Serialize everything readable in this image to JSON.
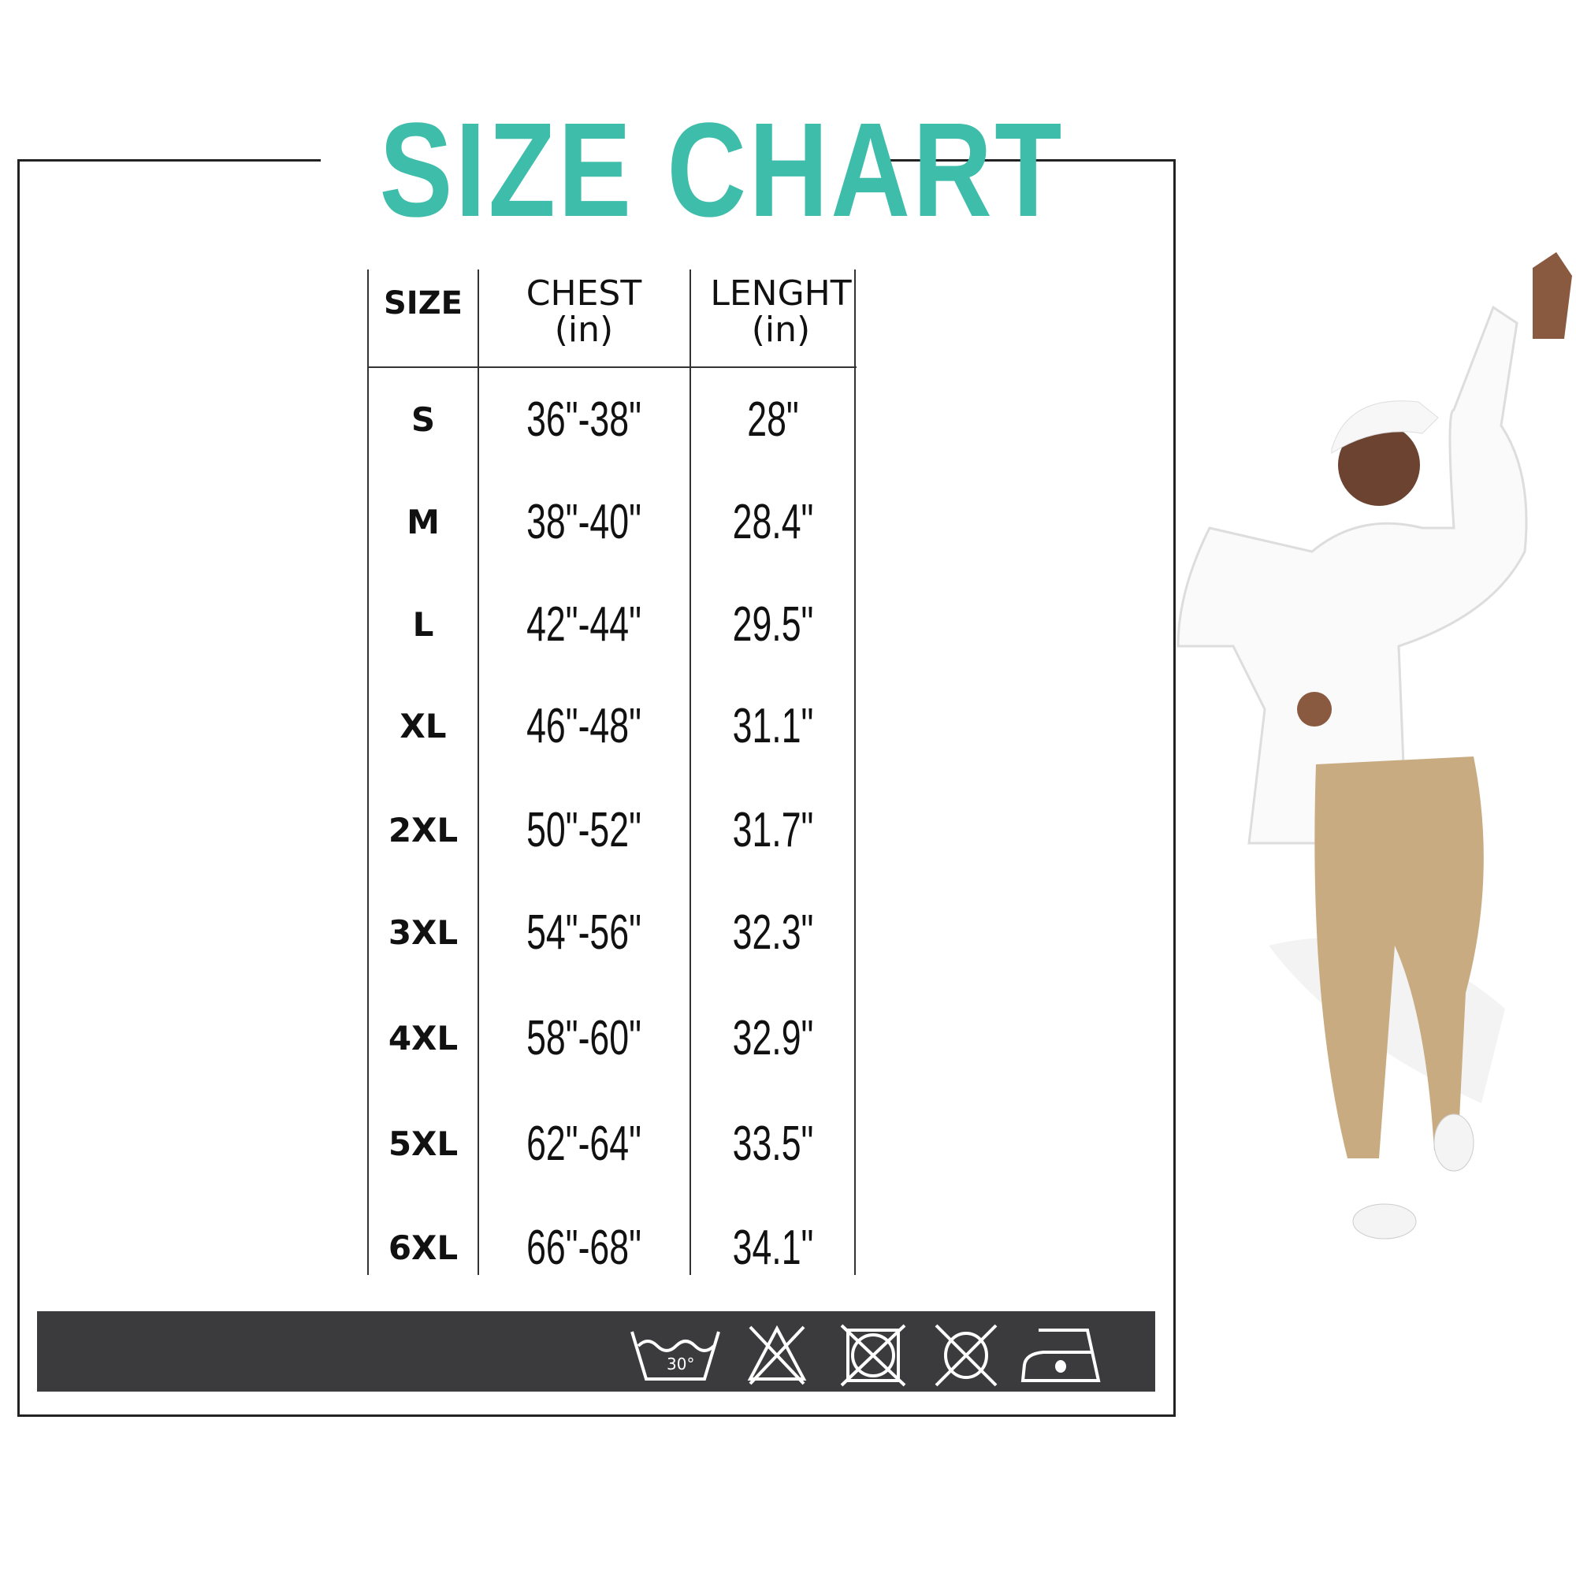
{
  "title": "SIZE CHART",
  "colors": {
    "title": "#3dbdaa",
    "care_bar": "#3b3b3d"
  },
  "table": {
    "headers": [
      {
        "line1": "SIZE",
        "line2": ""
      },
      {
        "line1": "CHEST",
        "line2": "(in)"
      },
      {
        "line1": "LENGHT",
        "line2": "(in)"
      }
    ],
    "rows": [
      {
        "size": "S",
        "chest": "36\"-38\"",
        "length": "28\""
      },
      {
        "size": "M",
        "chest": "38\"-40\"",
        "length": "28.4\""
      },
      {
        "size": "L",
        "chest": "42\"-44\"",
        "length": "29.5\""
      },
      {
        "size": "XL",
        "chest": "46\"-48\"",
        "length": "31.1\""
      },
      {
        "size": "2XL",
        "chest": "50\"-52\"",
        "length": "31.7\""
      },
      {
        "size": "3XL",
        "chest": "54\"-56\"",
        "length": "32.3\""
      },
      {
        "size": "4XL",
        "chest": "58\"-60\"",
        "length": "32.9\""
      },
      {
        "size": "5XL",
        "chest": "62\"-64\"",
        "length": "33.5\""
      },
      {
        "size": "6XL",
        "chest": "66\"-68\"",
        "length": "34.1\""
      }
    ]
  },
  "care_icons": [
    {
      "icon": "wash-30-icon",
      "label": "30°"
    },
    {
      "icon": "do-not-bleach-icon"
    },
    {
      "icon": "do-not-tumble-dry-icon"
    },
    {
      "icon": "do-not-dry-clean-icon"
    },
    {
      "icon": "iron-low-icon"
    }
  ]
}
